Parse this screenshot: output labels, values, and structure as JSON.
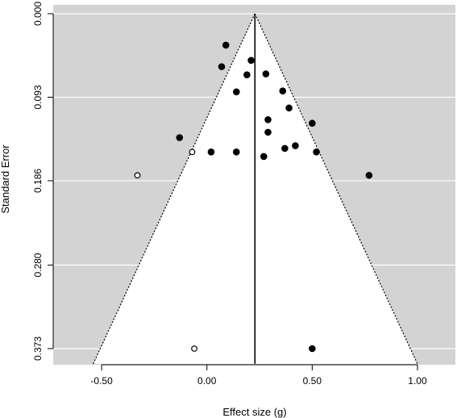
{
  "chart_data": {
    "type": "scatter",
    "subtype": "funnel",
    "title": "",
    "xlabel": "Effect size (g)",
    "ylabel": "Standard Error",
    "xlim": [
      -0.73,
      1.18
    ],
    "ylim": [
      0.0,
      0.38
    ],
    "y_inverted": true,
    "x_ticks": [
      {
        "value": -0.5,
        "label": "-0.50"
      },
      {
        "value": 0.0,
        "label": "0.00"
      },
      {
        "value": 0.5,
        "label": "0.50"
      },
      {
        "value": 1.0,
        "label": "1.00"
      }
    ],
    "y_ticks": [
      {
        "value": 0.0,
        "label": "0.000"
      },
      {
        "value": 0.093,
        "label": "0.093"
      },
      {
        "value": 0.186,
        "label": "0.186"
      },
      {
        "value": 0.28,
        "label": "0.280"
      },
      {
        "value": 0.373,
        "label": "0.373"
      }
    ],
    "grid": true,
    "pooled_effect": 0.228,
    "funnel": {
      "apex": [
        0.228,
        0.0
      ],
      "base_left": [
        -0.54,
        0.39
      ],
      "base_right": [
        1.0,
        0.39
      ]
    },
    "observed_studies": [
      {
        "x": 0.09,
        "y": 0.035
      },
      {
        "x": 0.07,
        "y": 0.059
      },
      {
        "x": 0.21,
        "y": 0.052
      },
      {
        "x": 0.19,
        "y": 0.068
      },
      {
        "x": 0.28,
        "y": 0.067
      },
      {
        "x": 0.14,
        "y": 0.087
      },
      {
        "x": 0.36,
        "y": 0.086
      },
      {
        "x": 0.39,
        "y": 0.105
      },
      {
        "x": 0.29,
        "y": 0.118
      },
      {
        "x": 0.5,
        "y": 0.122
      },
      {
        "x": 0.29,
        "y": 0.132
      },
      {
        "x": -0.13,
        "y": 0.138
      },
      {
        "x": 0.42,
        "y": 0.147
      },
      {
        "x": 0.37,
        "y": 0.15
      },
      {
        "x": 0.02,
        "y": 0.154
      },
      {
        "x": 0.14,
        "y": 0.154
      },
      {
        "x": 0.52,
        "y": 0.154
      },
      {
        "x": 0.27,
        "y": 0.159
      },
      {
        "x": 0.77,
        "y": 0.18
      },
      {
        "x": 0.5,
        "y": 0.373
      }
    ],
    "imputed_studies": [
      {
        "x": -0.07,
        "y": 0.154
      },
      {
        "x": -0.33,
        "y": 0.18
      },
      {
        "x": -0.06,
        "y": 0.373
      }
    ]
  }
}
